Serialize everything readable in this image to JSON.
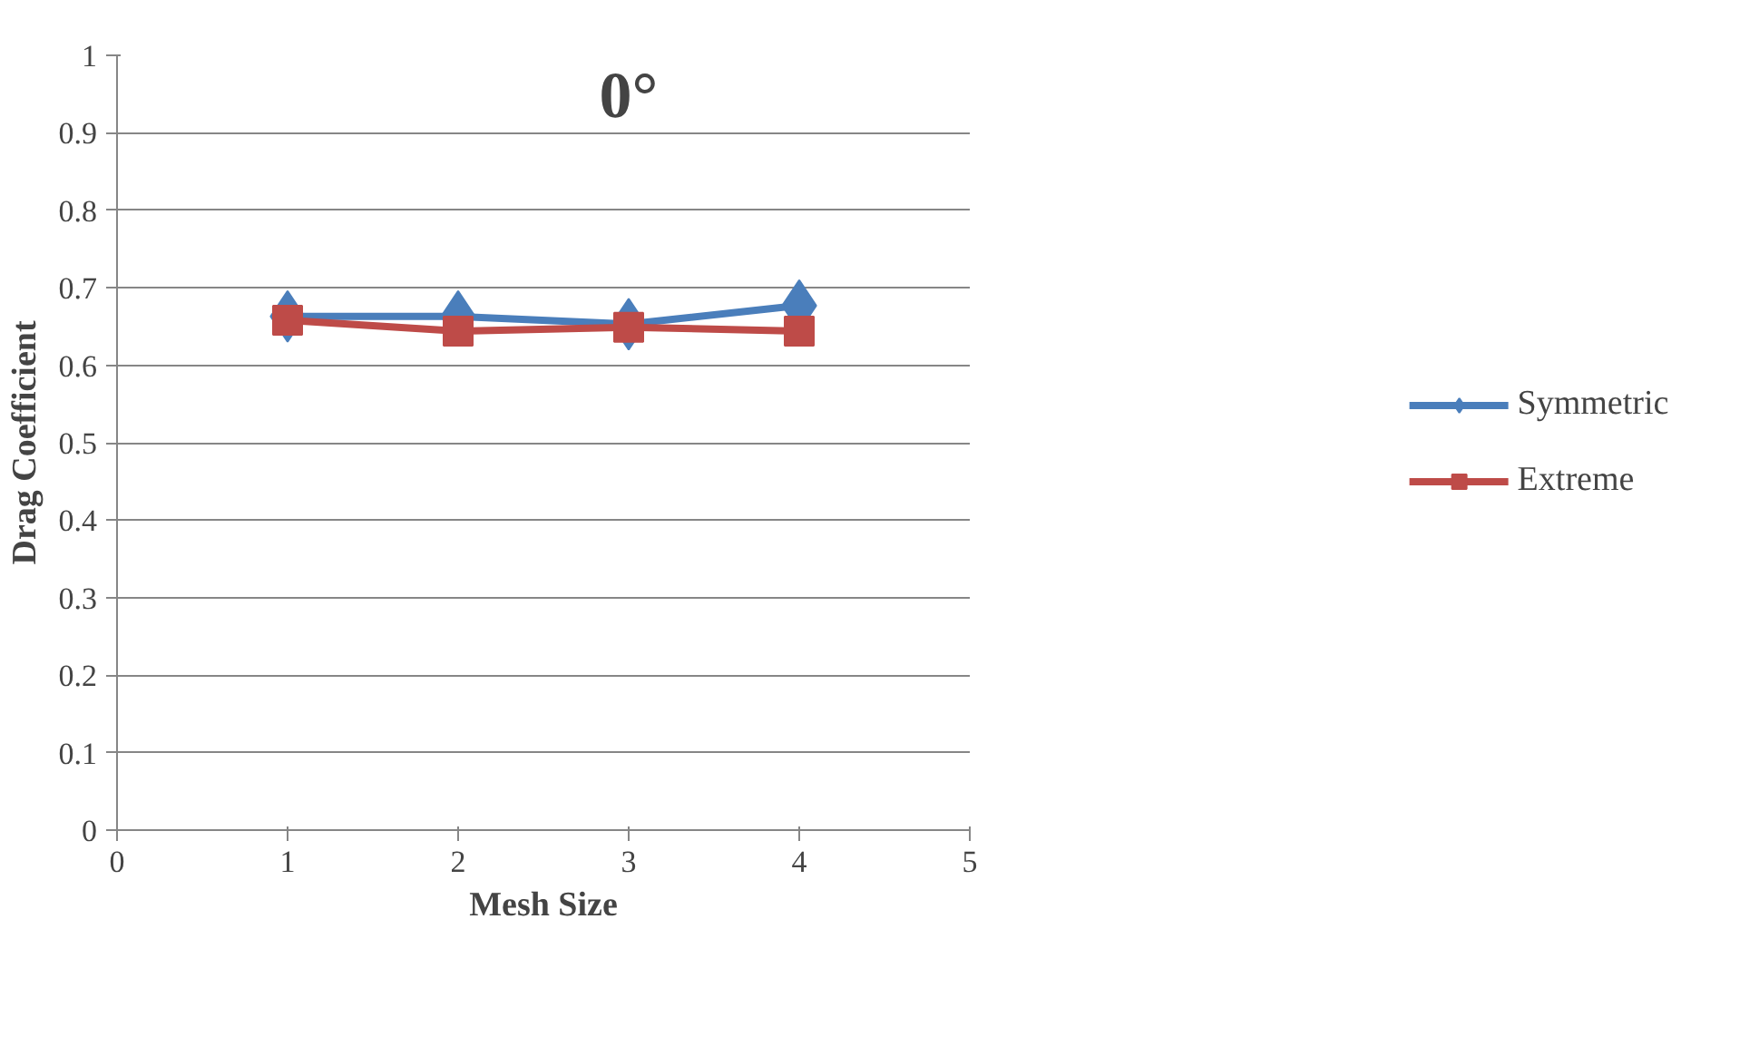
{
  "chart_data": {
    "type": "line",
    "title": "0°",
    "xlabel": "Mesh Size",
    "ylabel": "Drag Coefficient",
    "x": [
      1,
      2,
      3,
      4
    ],
    "series": [
      {
        "name": "Symmetric",
        "color": "#4a7ebb",
        "marker": "diamond",
        "values": [
          0.663,
          0.663,
          0.653,
          0.677
        ]
      },
      {
        "name": "Extreme",
        "color": "#be4b48",
        "marker": "square",
        "values": [
          0.658,
          0.644,
          0.649,
          0.644
        ]
      }
    ],
    "xlim": [
      0,
      5
    ],
    "xticks": [
      0,
      1,
      2,
      3,
      4,
      5
    ],
    "ylim": [
      0,
      1
    ],
    "yticks": [
      0,
      0.1,
      0.2,
      0.3,
      0.4,
      0.5,
      0.6,
      0.7,
      0.8,
      0.9,
      1
    ],
    "grid": "y",
    "legend": "right",
    "line_style": "solid"
  }
}
